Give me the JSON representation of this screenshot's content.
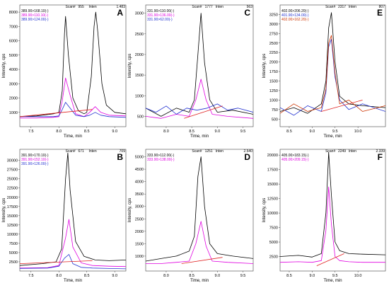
{
  "figure": {
    "panels": [
      {
        "letter": "A",
        "header": {
          "scan": "Scan#",
          "scan_val": "955",
          "inten": "Inten",
          "right": "1.483"
        },
        "legend": [
          {
            "label": "389.90>168.10(-)",
            "color": "#000000"
          },
          {
            "label": "389.90>110.10(-)",
            "color": "#e000e0"
          },
          {
            "label": "389.90>124.00(-)",
            "color": "#2030d0"
          }
        ]
      },
      {
        "letter": "B",
        "header": {
          "scan": "Scan#",
          "scan_val": "671",
          "inten": "Inten",
          "right": "709"
        },
        "legend": [
          {
            "label": "391.90>170.10(-)",
            "color": "#000000"
          },
          {
            "label": "391.90>152.10(-)",
            "color": "#e000e0"
          },
          {
            "label": "391.90>126.00(-)",
            "color": "#2030d0"
          }
        ]
      },
      {
        "letter": "C",
        "header": {
          "scan": "Scan#",
          "scan_val": "1777",
          "inten": "Inten",
          "right": "563"
        },
        "legend": [
          {
            "label": "331.90>110.00(-)",
            "color": "#000000"
          },
          {
            "label": "331.90>136.00(-)",
            "color": "#e000e0"
          },
          {
            "label": "331.90>62.00(-)",
            "color": "#2030d0"
          }
        ]
      },
      {
        "letter": "D",
        "header": {
          "scan": "Scan#",
          "scan_val": "1251",
          "inten": "Inten",
          "right": "2.540"
        },
        "legend": [
          {
            "label": "333.90>112.00(-)",
            "color": "#000000"
          },
          {
            "label": "333.90>138.00(-)",
            "color": "#e000e0"
          }
        ]
      },
      {
        "letter": "E",
        "header": {
          "scan": "Scan#",
          "scan_val": "2317",
          "inten": "Inten",
          "right": "807"
        },
        "legend": [
          {
            "label": "402.00>206.20(-)",
            "color": "#000000"
          },
          {
            "label": "401.90>134.00(-)",
            "color": "#2030d0"
          },
          {
            "label": "402.00>162.20(-)",
            "color": "#cc3300"
          }
        ]
      },
      {
        "letter": "F",
        "header": {
          "scan": "Scan#",
          "scan_val": "2249",
          "inten": "Inten",
          "right": "2.339"
        },
        "legend": [
          {
            "label": "405.00>183.15(-)",
            "color": "#000000"
          },
          {
            "label": "405.00>209.15(-)",
            "color": "#e000e0"
          }
        ]
      }
    ]
  },
  "chart_data": [
    {
      "type": "line",
      "panel": "A",
      "xlabel": "Time, min",
      "ylabel": "Intensity, cps",
      "xlim": [
        7.3,
        9.2
      ],
      "ylim": [
        0,
        8500
      ],
      "x_ticks": [
        7.5,
        8.0,
        8.5,
        9.0
      ],
      "y_ticks": [
        1000,
        2000,
        3000,
        4000,
        5000,
        6000,
        7000,
        8000
      ],
      "series": [
        {
          "x": [
            7.3,
            7.6,
            7.9,
            8.0,
            8.06,
            8.1,
            8.12,
            8.17,
            8.25,
            8.35,
            8.45,
            8.5,
            8.58,
            8.63,
            8.66,
            8.7,
            8.77,
            8.85,
            9.0,
            9.2
          ],
          "y": [
            700,
            750,
            900,
            1000,
            2500,
            6500,
            7700,
            5000,
            2000,
            1100,
            900,
            1000,
            3500,
            7000,
            8000,
            6500,
            3000,
            1500,
            1000,
            900
          ],
          "color": "#000000"
        },
        {
          "x": [
            7.3,
            7.6,
            7.9,
            8.0,
            8.06,
            8.12,
            8.2,
            8.3,
            8.45,
            8.55,
            8.65,
            8.75,
            8.9,
            9.2
          ],
          "y": [
            600,
            600,
            650,
            700,
            1800,
            3400,
            2200,
            900,
            700,
            1000,
            1400,
            1000,
            800,
            750
          ],
          "color": "#e000e0"
        },
        {
          "x": [
            7.3,
            7.6,
            7.9,
            8.0,
            8.06,
            8.12,
            8.2,
            8.3,
            8.45,
            8.55,
            8.65,
            8.75,
            8.9,
            9.2
          ],
          "y": [
            700,
            700,
            700,
            750,
            1200,
            1700,
            1300,
            800,
            700,
            800,
            1000,
            800,
            700,
            650
          ],
          "color": "#2030d0"
        },
        {
          "x": [
            7.3,
            8.6
          ],
          "y": [
            700,
            1200
          ],
          "color": "#e02020"
        }
      ]
    },
    {
      "type": "line",
      "panel": "B",
      "xlabel": "Time, min",
      "ylabel": "Intensity, cps",
      "xlim": [
        7.3,
        9.2
      ],
      "ylim": [
        0,
        33000
      ],
      "x_ticks": [
        7.5,
        8.0,
        8.5,
        9.0
      ],
      "y_ticks": [
        2500,
        5000,
        7500,
        10000,
        12500,
        15000,
        17500,
        20000,
        22500,
        25000,
        27500,
        30000
      ],
      "series": [
        {
          "x": [
            7.3,
            7.7,
            7.95,
            8.05,
            8.12,
            8.16,
            8.2,
            8.3,
            8.45,
            8.65,
            8.9,
            9.2
          ],
          "y": [
            1500,
            2000,
            2500,
            6000,
            25000,
            32000,
            22000,
            8000,
            4000,
            3000,
            2800,
            3000
          ],
          "color": "#000000"
        },
        {
          "x": [
            7.3,
            7.8,
            8.0,
            8.12,
            8.18,
            8.25,
            8.4,
            8.6,
            8.9,
            9.2
          ],
          "y": [
            800,
            900,
            1500,
            9000,
            14000,
            6500,
            2200,
            1500,
            1300,
            1200
          ],
          "color": "#e000e0"
        },
        {
          "x": [
            7.3,
            7.8,
            8.0,
            8.1,
            8.18,
            8.25,
            8.4,
            8.6,
            8.9,
            9.2
          ],
          "y": [
            700,
            800,
            1300,
            3500,
            4500,
            2000,
            1000,
            800,
            700,
            600
          ],
          "color": "#2030d0"
        },
        {
          "x": [
            7.3,
            8.6
          ],
          "y": [
            2000,
            2800
          ],
          "color": "#e02020"
        }
      ]
    },
    {
      "type": "line",
      "panel": "C",
      "xlabel": "Time, min",
      "ylabel": "Intensity, cps",
      "xlim": [
        7.6,
        9.7
      ],
      "ylim": [
        250,
        3200
      ],
      "x_ticks": [
        8.0,
        8.5,
        9.0,
        9.5
      ],
      "y_ticks": [
        500,
        1000,
        1500,
        2000,
        2500,
        3000
      ],
      "series": [
        {
          "x": [
            7.6,
            7.9,
            8.2,
            8.45,
            8.55,
            8.62,
            8.68,
            8.75,
            8.85,
            9.0,
            9.3,
            9.7
          ],
          "y": [
            700,
            500,
            700,
            600,
            900,
            2000,
            3000,
            1800,
            900,
            600,
            650,
            550
          ],
          "color": "#000000"
        },
        {
          "x": [
            7.6,
            7.9,
            8.2,
            8.45,
            8.58,
            8.68,
            8.78,
            8.9,
            9.2,
            9.7
          ],
          "y": [
            500,
            450,
            550,
            500,
            900,
            1400,
            900,
            550,
            500,
            450
          ],
          "color": "#e000e0"
        },
        {
          "x": [
            7.6,
            7.8,
            8.0,
            8.2,
            8.4,
            8.6,
            8.8,
            9.0,
            9.2,
            9.4,
            9.7
          ],
          "y": [
            700,
            600,
            750,
            550,
            700,
            650,
            700,
            800,
            650,
            700,
            600
          ],
          "color": "#2030d0"
        },
        {
          "x": [
            8.35,
            9.1
          ],
          "y": [
            450,
            750
          ],
          "color": "#e02020"
        }
      ]
    },
    {
      "type": "line",
      "panel": "D",
      "xlabel": "Time, min",
      "ylabel": "Intensity, cps",
      "xlim": [
        7.6,
        9.7
      ],
      "ylim": [
        400,
        5300
      ],
      "x_ticks": [
        8.0,
        8.5,
        9.0,
        9.5
      ],
      "y_ticks": [
        1000,
        1500,
        2000,
        2500,
        3000,
        3500,
        4000,
        4500,
        5000
      ],
      "series": [
        {
          "x": [
            7.6,
            7.9,
            8.2,
            8.45,
            8.55,
            8.62,
            8.68,
            8.75,
            8.85,
            9.0,
            9.3,
            9.7
          ],
          "y": [
            800,
            900,
            1000,
            1200,
            1800,
            4200,
            5000,
            3000,
            1500,
            1100,
            1000,
            900
          ],
          "color": "#000000"
        },
        {
          "x": [
            7.6,
            7.9,
            8.2,
            8.45,
            8.58,
            8.68,
            8.78,
            8.9,
            9.2,
            9.7
          ],
          "y": [
            700,
            700,
            750,
            800,
            1500,
            2400,
            1400,
            800,
            750,
            700
          ],
          "color": "#e000e0"
        },
        {
          "x": [
            8.3,
            9.1
          ],
          "y": [
            700,
            950
          ],
          "color": "#e02020"
        }
      ]
    },
    {
      "type": "line",
      "panel": "E",
      "xlabel": "Time, min",
      "ylabel": "Intensity, cps",
      "xlim": [
        8.3,
        10.6
      ],
      "ylim": [
        300,
        3500
      ],
      "x_ticks": [
        8.5,
        9.0,
        9.5,
        10.0
      ],
      "y_ticks": [
        500,
        750,
        1000,
        1250,
        1500,
        1750,
        2000,
        2250,
        2500,
        2750,
        3000,
        3250
      ],
      "series": [
        {
          "x": [
            8.3,
            8.6,
            8.9,
            9.2,
            9.3,
            9.36,
            9.42,
            9.5,
            9.6,
            9.8,
            10.1,
            10.6
          ],
          "y": [
            700,
            800,
            650,
            900,
            1500,
            2900,
            3300,
            2000,
            1100,
            900,
            850,
            800
          ],
          "color": "#000000"
        },
        {
          "x": [
            8.3,
            8.6,
            8.9,
            9.2,
            9.3,
            9.36,
            9.42,
            9.5,
            9.6,
            9.8,
            10.1,
            10.6
          ],
          "y": [
            800,
            600,
            850,
            700,
            1200,
            2400,
            2600,
            1600,
            1000,
            750,
            900,
            700
          ],
          "color": "#2030d0"
        },
        {
          "x": [
            8.3,
            8.6,
            8.9,
            9.2,
            9.3,
            9.36,
            9.42,
            9.5,
            9.6,
            9.8,
            10.1,
            10.6
          ],
          "y": [
            650,
            900,
            700,
            800,
            1300,
            2500,
            2700,
            1700,
            900,
            1000,
            700,
            850
          ],
          "color": "#cc3300"
        },
        {
          "x": [
            9.2,
            10.1
          ],
          "y": [
            700,
            1000
          ],
          "color": "#e02020"
        }
      ]
    },
    {
      "type": "line",
      "panel": "F",
      "xlabel": "Time, min",
      "ylabel": "Intensity, cps",
      "xlim": [
        8.3,
        10.6
      ],
      "ylim": [
        0,
        21000
      ],
      "x_ticks": [
        8.5,
        9.0,
        9.5,
        10.0
      ],
      "y_ticks": [
        2500,
        5000,
        7500,
        10000,
        12500,
        15000,
        17500,
        20000
      ],
      "series": [
        {
          "x": [
            8.3,
            8.7,
            9.0,
            9.2,
            9.3,
            9.36,
            9.42,
            9.5,
            9.6,
            9.8,
            10.1,
            10.6
          ],
          "y": [
            2500,
            2700,
            2400,
            3000,
            10000,
            20500,
            13000,
            5000,
            3500,
            3000,
            2900,
            2800
          ],
          "color": "#000000"
        },
        {
          "x": [
            8.3,
            8.7,
            9.0,
            9.2,
            9.3,
            9.36,
            9.42,
            9.5,
            9.6,
            9.8,
            10.1,
            10.6
          ],
          "y": [
            1500,
            1600,
            1500,
            1800,
            7000,
            14500,
            8000,
            2500,
            1800,
            1600,
            1500,
            1500
          ],
          "color": "#e000e0"
        },
        {
          "x": [
            9.1,
            9.7
          ],
          "y": [
            900,
            3000
          ],
          "color": "#e02020"
        }
      ]
    }
  ]
}
